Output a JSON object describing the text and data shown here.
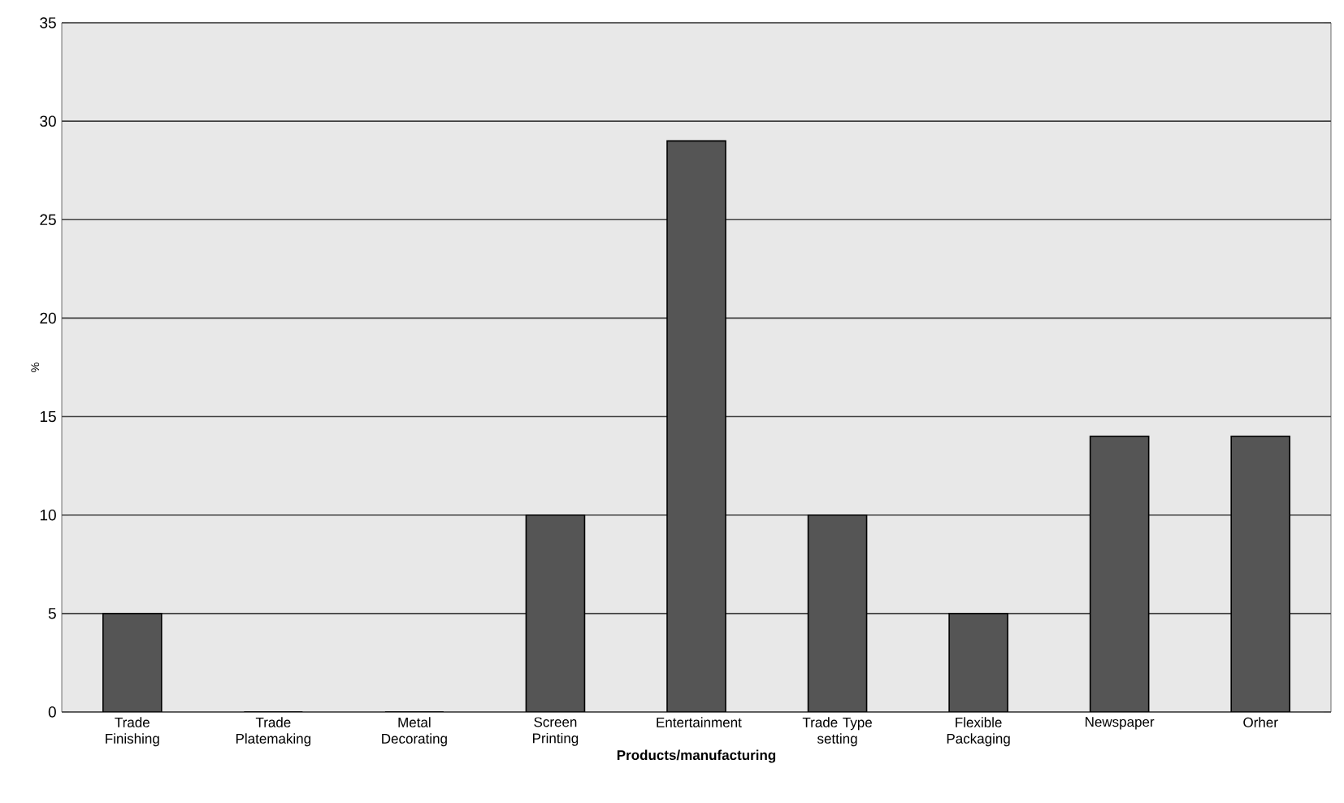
{
  "chart_data": {
    "type": "bar",
    "xlabel": "Products/manufacturing",
    "ylabel": "%",
    "categories": [
      "Trade Finishing",
      "Trade Platemaking",
      "Metal Decorating",
      "Screen Printing",
      "Entertainment",
      "Trade Type setting",
      "Flexible Packaging",
      "Newspaper",
      "Orher"
    ],
    "values": [
      5,
      0,
      0,
      10,
      29,
      10,
      5,
      14,
      14
    ],
    "color": "#555555",
    "ylim": [
      0,
      35
    ],
    "yticks": [
      0,
      5,
      10,
      15,
      20,
      25,
      30,
      35
    ],
    "grid": "y"
  }
}
